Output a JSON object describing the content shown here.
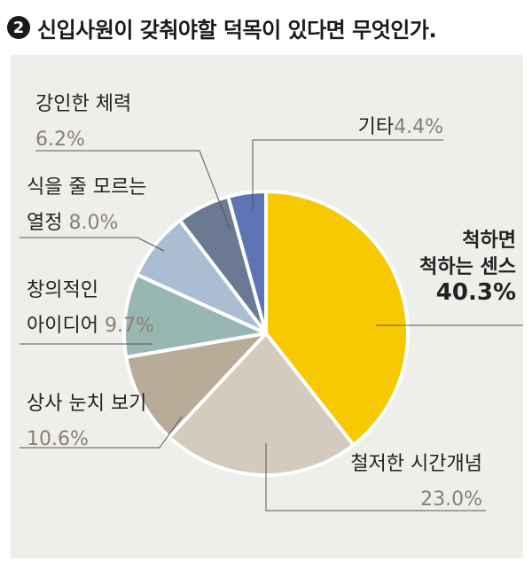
{
  "header": {
    "number": "2",
    "title": "신입사원이 갖춰야할 덕목이 있다면 무엇인가."
  },
  "chart_data": {
    "type": "pie",
    "title": "신입사원이 갖춰야할 덕목이 있다면 무엇인가.",
    "slices": [
      {
        "lines": [
          "척하면",
          "척하는 센스"
        ],
        "value_text": "40.3%",
        "value": 40.3,
        "color": "#f6c903"
      },
      {
        "lines": [
          "철저한 시간개념"
        ],
        "value_text": "23.0%",
        "value": 23.0,
        "color": "#d4cbbe"
      },
      {
        "lines": [
          "상사 눈치 보기"
        ],
        "value_text": "10.6%",
        "value": 10.6,
        "color": "#b8ab98"
      },
      {
        "lines": [
          "창의적인",
          "아이디어"
        ],
        "value_text": "9.7%",
        "value": 9.7,
        "color": "#98b7b2"
      },
      {
        "lines": [
          "식을 줄 모르는",
          "열정"
        ],
        "value_text": "8.0%",
        "value": 8.0,
        "color": "#abbdd3"
      },
      {
        "lines": [
          "강인한 체력"
        ],
        "value_text": "6.2%",
        "value": 6.2,
        "color": "#6b7993"
      },
      {
        "lines": [
          "기타"
        ],
        "value_text": "4.4%",
        "value": 4.4,
        "color": "#5e74b4"
      }
    ]
  }
}
